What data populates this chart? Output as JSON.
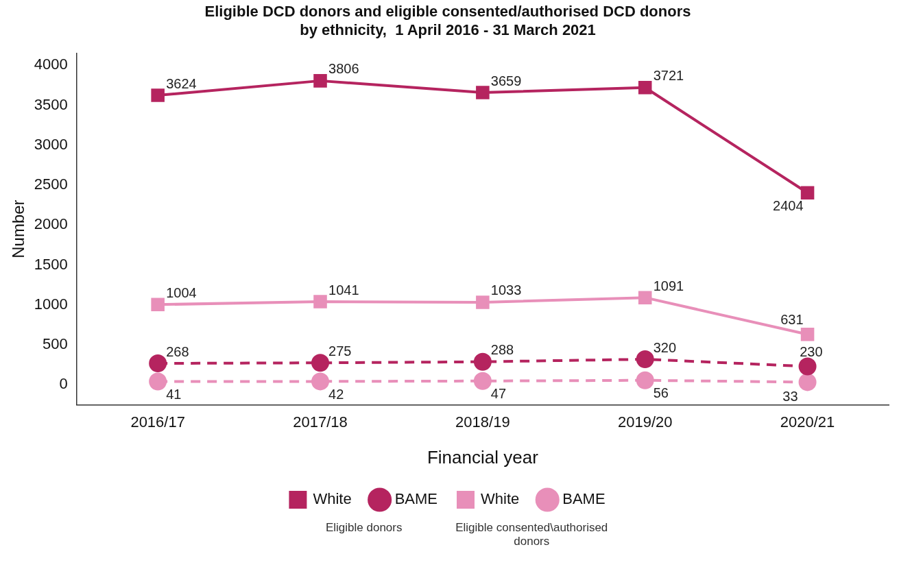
{
  "chart_data": {
    "type": "line",
    "title": "Eligible DCD donors and eligible consented/authorised DCD donors\nby ethnicity,  1 April 2016 - 31 March 2021",
    "xlabel": "Financial year",
    "ylabel": "Number",
    "categories": [
      "2016/17",
      "2017/18",
      "2018/19",
      "2019/20",
      "2020/21"
    ],
    "series": [
      {
        "name": "White",
        "color": "#b5245f",
        "marker": "square",
        "line_style": "solid",
        "values": [
          3624,
          3806,
          3659,
          3721,
          2404
        ]
      },
      {
        "name": "BAME",
        "color": "#b5245f",
        "marker": "circle",
        "line_style": "dashed",
        "values": [
          268,
          275,
          288,
          320,
          230
        ]
      },
      {
        "name": "White",
        "color": "#e88fb9",
        "marker": "square",
        "line_style": "solid",
        "values": [
          1004,
          1041,
          1033,
          1091,
          631
        ]
      },
      {
        "name": "BAME",
        "color": "#e88fb9",
        "marker": "circle",
        "line_style": "dashed",
        "values": [
          41,
          42,
          47,
          56,
          33
        ]
      }
    ],
    "ylim": [
      -250,
      4150
    ],
    "yticks": [
      0,
      500,
      1000,
      1500,
      2000,
      2500,
      3000,
      3500,
      4000
    ],
    "data_labels": true,
    "grid": false,
    "legend": "bottom",
    "annotations": [
      "Eligible donors",
      "Eligible consented\\authorised donors"
    ]
  }
}
